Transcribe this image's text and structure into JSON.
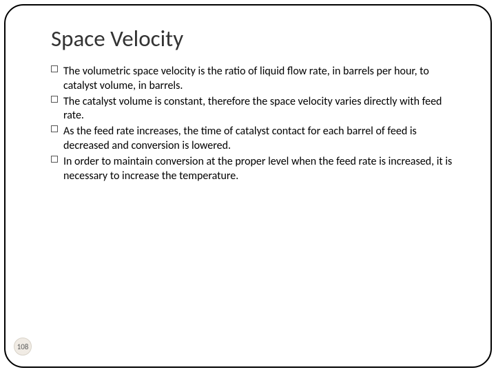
{
  "slide": {
    "title": "Space Velocity",
    "bullets": [
      "The volumetric space velocity is the ratio of liquid flow rate, in barrels per hour, to catalyst volume, in barrels.",
      " The catalyst volume is constant, therefore the space velocity varies directly with feed rate.",
      " As the feed rate increases, the time of catalyst contact for each barrel of feed is decreased and conversion is lowered.",
      "In order to maintain conversion at the proper level when the feed rate is increased, it is necessary to increase the temperature."
    ],
    "page_number": "108"
  },
  "style": {
    "background_color": "#ffffff",
    "frame_border_color": "#000000",
    "frame_border_radius": 28,
    "title_color": "#333333",
    "title_fontsize": 33,
    "body_color": "#000000",
    "body_fontsize": 16,
    "bullet_box_border": "#555555",
    "page_badge_bg": "#f0ebe4",
    "page_badge_border": "#d8d2c8",
    "page_badge_text": "#5a5a5a"
  }
}
